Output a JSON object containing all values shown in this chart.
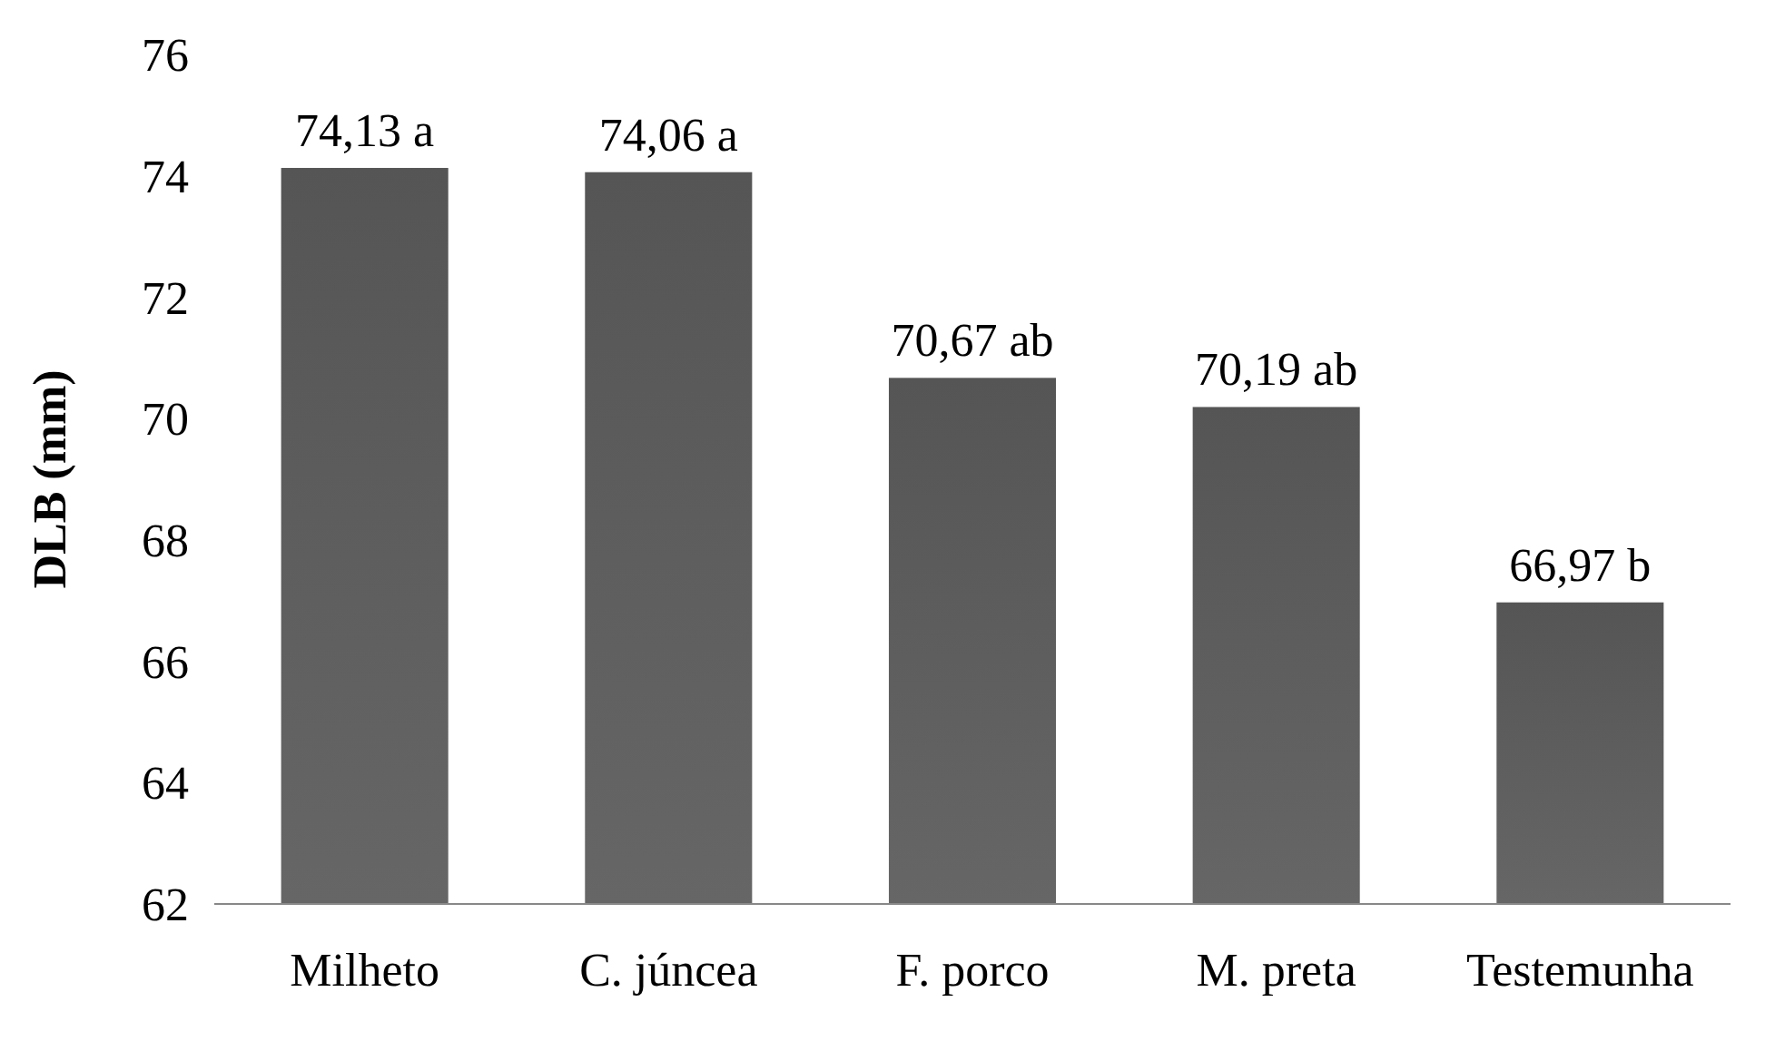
{
  "chart_data": {
    "type": "bar",
    "ylabel": "DLB (mm)",
    "categories": [
      "Milheto",
      "C. júncea",
      "F. porco",
      "M. preta",
      "Testemunha"
    ],
    "values": [
      74.13,
      74.06,
      70.67,
      70.19,
      66.97
    ],
    "color": "#555555",
    "value_labels": [
      "74,13 a",
      "74,06 a",
      "70,67 ab",
      "70,19 ab",
      "66,97 b"
    ],
    "ylim": [
      62,
      76
    ],
    "yticks": [
      62,
      64,
      66,
      68,
      70,
      72,
      74,
      76
    ]
  }
}
